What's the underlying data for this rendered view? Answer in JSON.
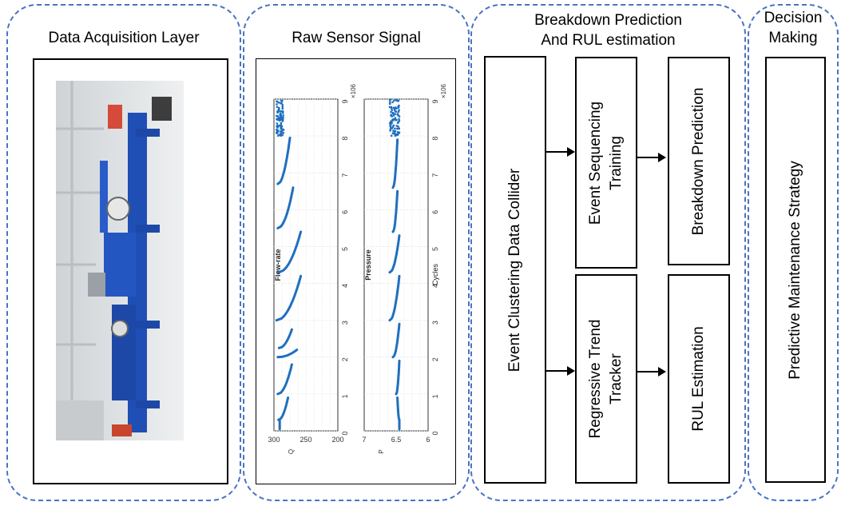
{
  "panels": {
    "acquisition": {
      "title": "Data Acquisition Layer"
    },
    "signal": {
      "title": "Raw Sensor Signal"
    },
    "prediction": {
      "title": "Breakdown Prediction\nAnd RUL estimation"
    },
    "decision": {
      "title": "Decision\nMaking"
    }
  },
  "boxes": {
    "clustering": "Event Clustering Data Collider",
    "sequencing": "Event Sequencing\nTraining",
    "breakdown": "Breakdown Prediction",
    "trend": "Regressive Trend\nTracker",
    "rul": "RUL Estimation",
    "strategy": "Predictive Maintenance Strategy"
  },
  "photo": {
    "alt": "industrial test rig photo"
  },
  "chart_data": [
    {
      "type": "scatter",
      "title": "",
      "xlabel": "Cycles",
      "ylabel": "Flow-rate",
      "ylabel_prefix": "Q",
      "y_tick_labels": [
        "300",
        "250",
        "200"
      ],
      "ylim": [
        200,
        300
      ],
      "x_ticks": [
        0,
        1,
        2,
        3,
        4,
        5,
        6,
        7,
        8,
        9
      ],
      "x_multiplier": "×10^6",
      "xlim": [
        0,
        9
      ],
      "grid": true,
      "series": [
        {
          "name": "Flow-rate",
          "segments": [
            {
              "x": [
                0.05,
                0.3
              ],
              "y": [
                291,
                291
              ]
            },
            {
              "x": [
                0.3,
                0.9
              ],
              "y": [
                293,
                278
              ]
            },
            {
              "x": [
                1.0,
                1.8
              ],
              "y": [
                294,
                272
              ]
            },
            {
              "x": [
                2.0,
                2.2
              ],
              "y": [
                294,
                264
              ]
            },
            {
              "x": [
                2.25,
                2.75
              ],
              "y": [
                292,
                272
              ]
            },
            {
              "x": [
                3.0,
                4.2
              ],
              "y": [
                296,
                258
              ]
            },
            {
              "x": [
                4.3,
                5.4
              ],
              "y": [
                293,
                258
              ]
            },
            {
              "x": [
                5.5,
                6.6
              ],
              "y": [
                294,
                270
              ]
            },
            {
              "x": [
                6.7,
                7.95
              ],
              "y": [
                294,
                275
              ]
            }
          ],
          "noise_from": 8.0,
          "noise_y": [
            285,
            296
          ]
        }
      ]
    },
    {
      "type": "scatter",
      "title": "",
      "xlabel": "Cycles",
      "ylabel": "Pressure",
      "ylabel_prefix": "P",
      "y_tick_labels": [
        "7",
        "6.5",
        "6"
      ],
      "ylim": [
        6,
        7
      ],
      "x_ticks": [
        0,
        1,
        2,
        3,
        4,
        5,
        6,
        7,
        8,
        9
      ],
      "x_multiplier": "×10^6",
      "xlim": [
        0,
        9
      ],
      "grid": true,
      "series": [
        {
          "name": "Pressure",
          "segments": [
            {
              "x": [
                0.05,
                0.3
              ],
              "y": [
                6.45,
                6.45
              ]
            },
            {
              "x": [
                0.3,
                0.9
              ],
              "y": [
                6.45,
                6.48
              ]
            },
            {
              "x": [
                1.0,
                1.9
              ],
              "y": [
                6.5,
                6.45
              ]
            },
            {
              "x": [
                2.0,
                2.9
              ],
              "y": [
                6.55,
                6.45
              ]
            },
            {
              "x": [
                3.0,
                4.2
              ],
              "y": [
                6.6,
                6.45
              ]
            },
            {
              "x": [
                4.3,
                5.3
              ],
              "y": [
                6.6,
                6.45
              ]
            },
            {
              "x": [
                5.4,
                6.5
              ],
              "y": [
                6.55,
                6.48
              ]
            },
            {
              "x": [
                6.6,
                7.9
              ],
              "y": [
                6.55,
                6.48
              ]
            }
          ],
          "noise_from": 8.0,
          "noise_y": [
            6.45,
            6.6
          ]
        }
      ]
    }
  ],
  "colors": {
    "panel_border": "#4a73c4",
    "data": "#1f6fbf",
    "rig_blue": "#1f4fb5"
  }
}
